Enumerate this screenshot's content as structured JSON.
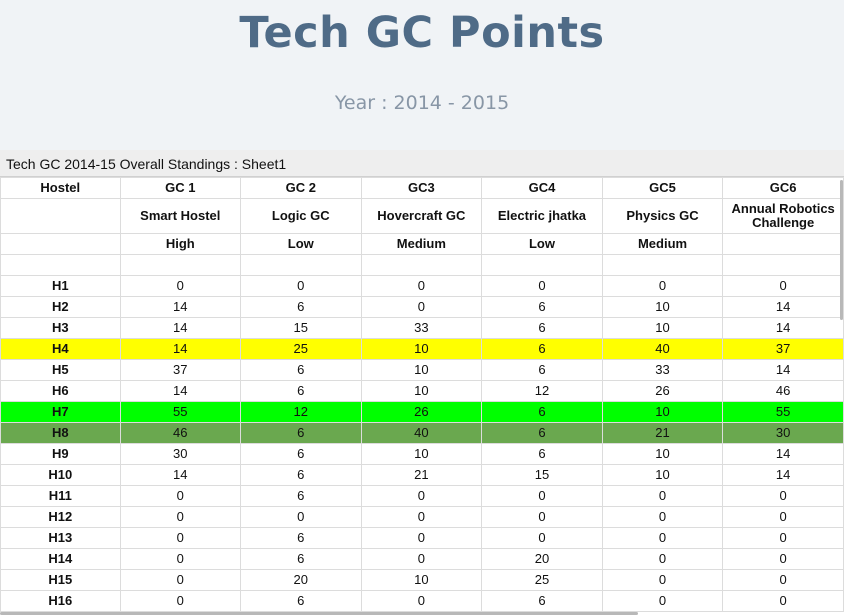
{
  "header": {
    "title": "Tech GC Points",
    "subtitle": "Year : 2014 - 2015"
  },
  "sheet": {
    "title": "Tech GC 2014-15 Overall Standings : Sheet1",
    "col_headers": [
      "Hostel",
      "GC 1",
      "GC 2",
      "GC3",
      "GC4",
      "GC5",
      "GC6"
    ],
    "gc_names": [
      "",
      "Smart Hostel",
      "Logic GC",
      "Hovercraft GC",
      "Electric jhatka",
      "Physics GC",
      "Annual Robotics Challenge"
    ],
    "weights": [
      "",
      "High",
      "Low",
      "Medium",
      "Low",
      "Medium",
      ""
    ],
    "rows": [
      {
        "hostel": "H1",
        "points": [
          "0",
          "0",
          "0",
          "0",
          "0",
          "0"
        ],
        "highlight": ""
      },
      {
        "hostel": "H2",
        "points": [
          "14",
          "6",
          "0",
          "6",
          "10",
          "14"
        ],
        "highlight": ""
      },
      {
        "hostel": "H3",
        "points": [
          "14",
          "15",
          "33",
          "6",
          "10",
          "14"
        ],
        "highlight": ""
      },
      {
        "hostel": "H4",
        "points": [
          "14",
          "25",
          "10",
          "6",
          "40",
          "37"
        ],
        "highlight": "#ffff00"
      },
      {
        "hostel": "H5",
        "points": [
          "37",
          "6",
          "10",
          "6",
          "33",
          "14"
        ],
        "highlight": ""
      },
      {
        "hostel": "H6",
        "points": [
          "14",
          "6",
          "10",
          "12",
          "26",
          "46"
        ],
        "highlight": ""
      },
      {
        "hostel": "H7",
        "points": [
          "55",
          "12",
          "26",
          "6",
          "10",
          "55"
        ],
        "highlight": "#00ff00"
      },
      {
        "hostel": "H8",
        "points": [
          "46",
          "6",
          "40",
          "6",
          "21",
          "30"
        ],
        "highlight": "#6aa84f"
      },
      {
        "hostel": "H9",
        "points": [
          "30",
          "6",
          "10",
          "6",
          "10",
          "14"
        ],
        "highlight": ""
      },
      {
        "hostel": "H10",
        "points": [
          "14",
          "6",
          "21",
          "15",
          "10",
          "14"
        ],
        "highlight": ""
      },
      {
        "hostel": "H11",
        "points": [
          "0",
          "6",
          "0",
          "0",
          "0",
          "0"
        ],
        "highlight": ""
      },
      {
        "hostel": "H12",
        "points": [
          "0",
          "0",
          "0",
          "0",
          "0",
          "0"
        ],
        "highlight": ""
      },
      {
        "hostel": "H13",
        "points": [
          "0",
          "6",
          "0",
          "0",
          "0",
          "0"
        ],
        "highlight": ""
      },
      {
        "hostel": "H14",
        "points": [
          "0",
          "6",
          "0",
          "20",
          "0",
          "0"
        ],
        "highlight": ""
      },
      {
        "hostel": "H15",
        "points": [
          "0",
          "20",
          "10",
          "25",
          "0",
          "0"
        ],
        "highlight": ""
      },
      {
        "hostel": "H16",
        "points": [
          "0",
          "6",
          "0",
          "6",
          "0",
          "0"
        ],
        "highlight": ""
      }
    ]
  }
}
